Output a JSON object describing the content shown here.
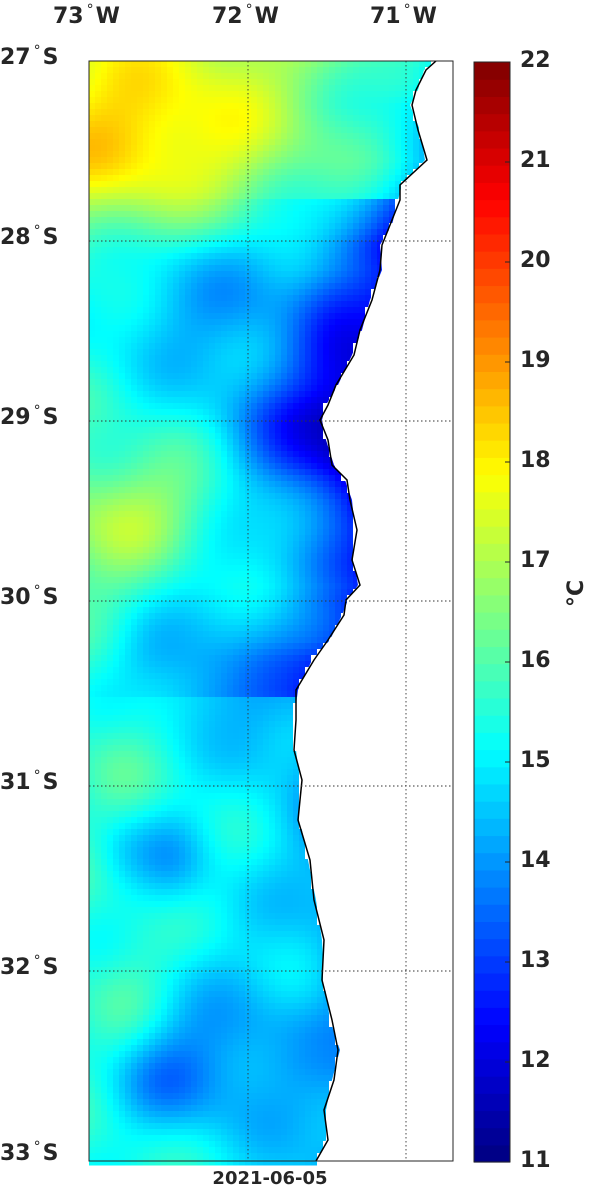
{
  "map": {
    "longitude_labels": [
      {
        "deg": "73",
        "hem": "W"
      },
      {
        "deg": "72",
        "hem": "W"
      },
      {
        "deg": "71",
        "hem": "W"
      }
    ],
    "latitude_labels": [
      {
        "deg": "27",
        "hem": "S"
      },
      {
        "deg": "28",
        "hem": "S"
      },
      {
        "deg": "29",
        "hem": "S"
      },
      {
        "deg": "30",
        "hem": "S"
      },
      {
        "deg": "31",
        "hem": "S"
      },
      {
        "deg": "32",
        "hem": "S"
      },
      {
        "deg": "33",
        "hem": "S"
      }
    ],
    "degree_symbol": "°",
    "lon_range": [
      -73,
      -70.75
    ],
    "lat_range": [
      -33,
      -27
    ],
    "grid": true,
    "date": "2021-06-05"
  },
  "colorbar": {
    "colormap": "jet",
    "range": [
      11,
      22
    ],
    "ticks": [
      "11",
      "12",
      "13",
      "14",
      "15",
      "16",
      "17",
      "18",
      "19",
      "20",
      "21",
      "22"
    ],
    "unit": "°C",
    "placement": "right"
  }
}
